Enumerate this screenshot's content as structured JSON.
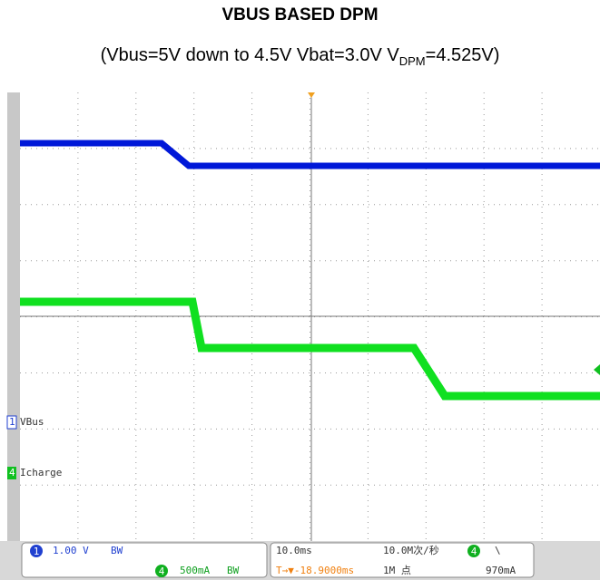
{
  "header": {
    "title": "VBUS BASED DPM",
    "subtitle": {
      "before": "(Vbus=5V down to 4.5V Vbat=3.0V V",
      "sub": "DPM",
      "after": "=4.525V)"
    }
  },
  "channels": [
    {
      "number": "1",
      "label": "VBus"
    },
    {
      "number": "4",
      "label": "Icharge"
    }
  ],
  "status_bar": {
    "ch1_number": "1",
    "ch1_scale": "1.00 V",
    "ch1_bw": "BW",
    "ch4_number": "4",
    "ch4_scale": "500mA",
    "ch4_bw": "BW",
    "timebase": "10.0ms",
    "trigger_position": "T→▼-18.9000ms",
    "sample_rate": "10.0M次/秒",
    "record_length": "1M 点",
    "trigger_source": "4",
    "trigger_slope": "\\",
    "trigger_level": "970mA"
  }
}
